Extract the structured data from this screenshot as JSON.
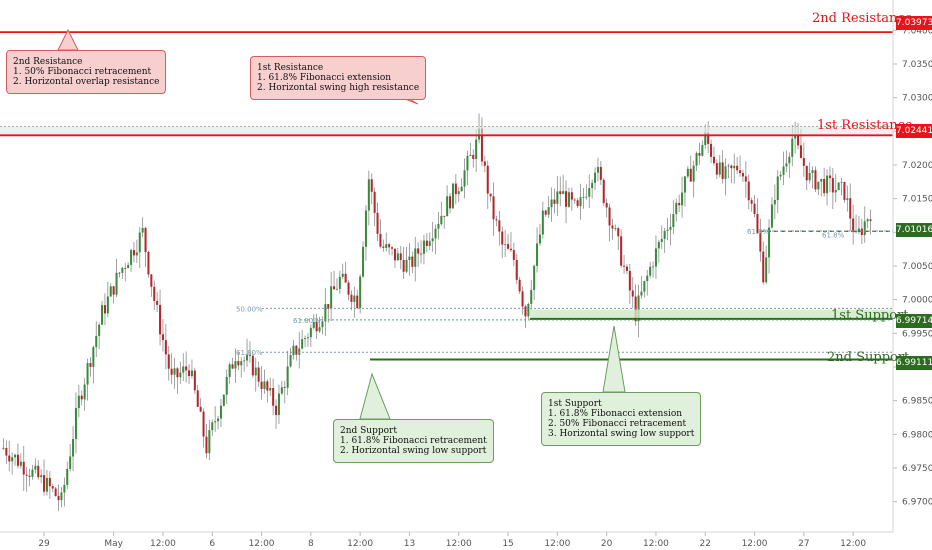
{
  "colors": {
    "resistance": "#e8141c",
    "support": "#2e6b22",
    "candle_up": "#3a8a3e",
    "candle_down": "#b2262c",
    "wick": "#8a8a8a",
    "fib": "#7a9aa8",
    "fib_green": "#4aa37a"
  },
  "levels": {
    "resistance2": {
      "label": "2nd Resistance",
      "price": 7.03973,
      "price_label": "7.03973"
    },
    "resistance1": {
      "label": "1st Resistance",
      "price": 7.02441,
      "price_label": "7.02441"
    },
    "current": {
      "price": 7.01016,
      "price_label": "7.01016"
    },
    "support1": {
      "label": "1st Support",
      "price": 6.99714,
      "price_label": "6.99714"
    },
    "support2": {
      "label": "2nd Support",
      "price": 6.99111,
      "price_label": "6.99111"
    }
  },
  "fib_labels": {
    "a": "50.00%",
    "b": "61.80%",
    "c": "61.80%",
    "d": "61.8%",
    "e": "61.8%"
  },
  "notes": {
    "r2": {
      "title": "2nd Resistance",
      "line1": "1. 50% Fibonacci retracement",
      "line2": "2. Horizontal overlap resistance"
    },
    "r1": {
      "title": "1st Resistance",
      "line1": "1. 61.8% Fibonacci extension",
      "line2": "2. Horizontal swing high resistance"
    },
    "s2": {
      "title": "2nd Support",
      "line1": "1. 61.8% Fibonacci retracement",
      "line2": "2. Horizontal swing low support"
    },
    "s1": {
      "title": "1st Support",
      "line1": "1. 61.8% Fibonacci extension",
      "line2": "2. 50% Fibonacci retracement",
      "line3": "3. Horizontal swing low support"
    }
  },
  "chart_data": {
    "type": "candlestick",
    "ylim": [
      6.9655,
      7.0445
    ],
    "y_ticks": [
      "7.04000",
      "7.03500",
      "7.03000",
      "7.02500",
      "7.02000",
      "7.01500",
      "7.01000",
      "7.00500",
      "7.00000",
      "6.99500",
      "6.99000",
      "6.98500",
      "6.98000",
      "6.97500",
      "6.97000"
    ],
    "y_tick_values": [
      7.04,
      7.035,
      7.03,
      7.025,
      7.02,
      7.015,
      7.01,
      7.005,
      7.0,
      6.995,
      6.99,
      6.985,
      6.98,
      6.975,
      6.97
    ],
    "x_ticks": [
      "29",
      "May",
      "12:00",
      "6",
      "12:00",
      "8",
      "12:00",
      "13",
      "12:00",
      "15",
      "12:00",
      "20",
      "12:00",
      "22",
      "12:00",
      "27",
      "12:00"
    ],
    "x_tick_index": [
      14,
      38,
      55,
      72,
      89,
      106,
      123,
      140,
      157,
      174,
      191,
      208,
      225,
      242,
      259,
      276,
      293
    ],
    "n_candles": 300,
    "close_path": [
      [
        0,
        6.978
      ],
      [
        8,
        6.975
      ],
      [
        16,
        6.972
      ],
      [
        20,
        6.97
      ],
      [
        26,
        6.985
      ],
      [
        34,
        6.998
      ],
      [
        40,
        7.004
      ],
      [
        48,
        7.01
      ],
      [
        52,
        7.0
      ],
      [
        58,
        6.988
      ],
      [
        64,
        6.99
      ],
      [
        70,
        6.978
      ],
      [
        75,
        6.985
      ],
      [
        80,
        6.992
      ],
      [
        86,
        6.99
      ],
      [
        94,
        6.984
      ],
      [
        100,
        6.992
      ],
      [
        110,
        6.998
      ],
      [
        116,
        7.003
      ],
      [
        122,
        7.0
      ],
      [
        126,
        7.018
      ],
      [
        130,
        7.008
      ],
      [
        140,
        7.005
      ],
      [
        150,
        7.012
      ],
      [
        158,
        7.018
      ],
      [
        164,
        7.024
      ],
      [
        168,
        7.014
      ],
      [
        172,
        7.008
      ],
      [
        176,
        7.006
      ],
      [
        180,
        6.998
      ],
      [
        186,
        7.012
      ],
      [
        192,
        7.016
      ],
      [
        198,
        7.013
      ],
      [
        204,
        7.02
      ],
      [
        212,
        7.008
      ],
      [
        218,
        6.998
      ],
      [
        224,
        7.006
      ],
      [
        230,
        7.012
      ],
      [
        236,
        7.018
      ],
      [
        242,
        7.024
      ],
      [
        248,
        7.018
      ],
      [
        254,
        7.02
      ],
      [
        258,
        7.015
      ],
      [
        262,
        7.004
      ],
      [
        266,
        7.016
      ],
      [
        272,
        7.024
      ],
      [
        278,
        7.018
      ],
      [
        284,
        7.017
      ],
      [
        290,
        7.016
      ],
      [
        294,
        7.009
      ],
      [
        300,
        7.014
      ]
    ],
    "annotations": [
      "2nd Resistance",
      "1st Resistance",
      "1st Support",
      "2nd Support"
    ]
  }
}
